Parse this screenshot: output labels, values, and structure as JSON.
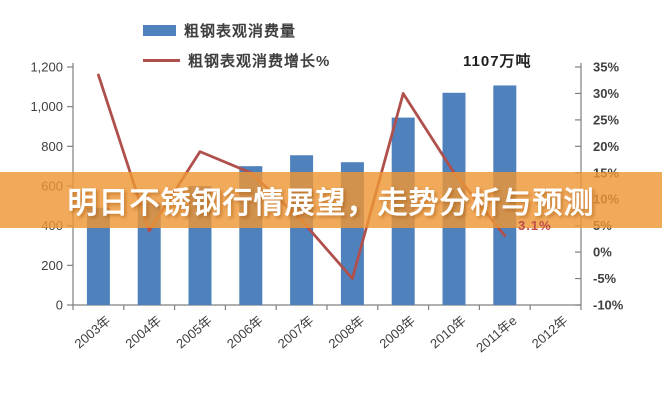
{
  "legend": [
    {
      "label": "粗钢表观消费量",
      "type": "bar",
      "color": "#4F81BD"
    },
    {
      "label": "粗钢表观消费增长%",
      "type": "line",
      "color": "#B0504D"
    }
  ],
  "annotations": {
    "peak_label": "1107万吨",
    "last_growth_label": "3.1%"
  },
  "overlay": {
    "banner_text": "明日不锈钢行情展望，走势分析与预测",
    "banner_color": "#EE9636"
  },
  "chart_data": {
    "type": "bar",
    "categories": [
      "2003年",
      "2004年",
      "2005年",
      "2006年",
      "2007年",
      "2008年",
      "2009年",
      "2010年",
      "2011年e",
      "2012年"
    ],
    "series": [
      {
        "name": "粗钢表观消费量",
        "type": "bar",
        "axis": "left",
        "color": "#4F81BD",
        "values": [
          490,
          515,
          600,
          700,
          755,
          720,
          945,
          1070,
          1107,
          null
        ]
      },
      {
        "name": "粗钢表观消费增长%",
        "type": "line",
        "axis": "right",
        "color": "#B0504D",
        "values": [
          33.5,
          4,
          19,
          15,
          6,
          -5,
          30,
          15,
          3.1,
          null
        ]
      }
    ],
    "left_axis": {
      "min": 0,
      "max": 1200,
      "step": 200,
      "tick_labels": [
        "0",
        "200",
        "400",
        "600",
        "800",
        "1,000",
        "1,200"
      ]
    },
    "right_axis": {
      "min": -10,
      "max": 35,
      "step": 5,
      "tick_labels": [
        "-10%",
        "-5%",
        "0%",
        "5%",
        "10%",
        "15%",
        "20%",
        "25%",
        "30%",
        "35%"
      ]
    },
    "grid": false,
    "legend_position": "top",
    "title": ""
  }
}
